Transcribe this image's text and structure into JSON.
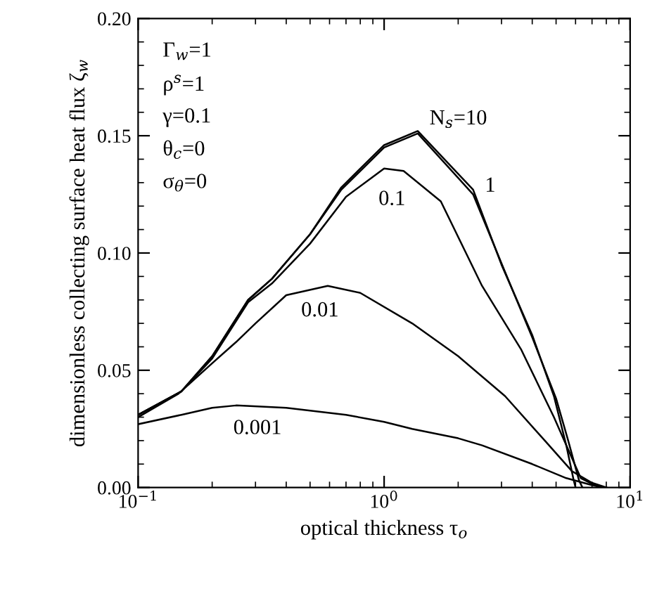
{
  "chart_data": {
    "type": "line",
    "xlabel": "optical thickness τ$_{o}$",
    "ylabel": "dimensionless collecting surface heat flux ζ$_{w}$",
    "log": "x",
    "xlim": [
      0.1,
      10
    ],
    "xticks": [
      {
        "value": 0.1,
        "label": "10$^{−1}$"
      },
      {
        "value": 1,
        "label": "10$^{0}$"
      },
      {
        "value": 10,
        "label": "10$^{1}$"
      }
    ],
    "ylim": [
      0,
      0.2
    ],
    "yticks": [
      {
        "value": 0,
        "label": "0.00"
      },
      {
        "value": 0.05,
        "label": "0.05"
      },
      {
        "value": 0.1,
        "label": "0.10"
      },
      {
        "value": 0.15,
        "label": "0.15"
      },
      {
        "value": 0.2,
        "label": "0.20"
      }
    ],
    "grid": false,
    "legend": false,
    "marker": "none",
    "line_style": "solid",
    "series": [
      {
        "name": "N$_{s}$=10",
        "color": "#000000",
        "x": [
          0.1,
          0.15,
          0.2,
          0.28,
          0.35,
          0.5,
          0.67,
          1.0,
          1.37,
          2.3,
          3.0,
          4.0,
          4.9,
          5.5,
          5.9,
          6.0
        ],
        "values": [
          0.031,
          0.041,
          0.056,
          0.08,
          0.089,
          0.108,
          0.128,
          0.146,
          0.152,
          0.127,
          0.095,
          0.065,
          0.039,
          0.018,
          0.003,
          0.0
        ]
      },
      {
        "name": "1",
        "color": "#000000",
        "x": [
          0.1,
          0.15,
          0.2,
          0.28,
          0.35,
          0.5,
          0.67,
          1.0,
          1.37,
          2.3,
          3.1,
          4.0,
          5.0,
          5.6,
          6.2,
          6.4
        ],
        "values": [
          0.031,
          0.041,
          0.056,
          0.08,
          0.089,
          0.108,
          0.127,
          0.145,
          0.151,
          0.125,
          0.092,
          0.064,
          0.038,
          0.02,
          0.003,
          0.0
        ]
      },
      {
        "name": "0.1",
        "color": "#000000",
        "x": [
          0.1,
          0.15,
          0.2,
          0.28,
          0.35,
          0.5,
          0.7,
          1.0,
          1.2,
          1.7,
          2.5,
          3.6,
          4.9,
          6.3,
          7.5
        ],
        "values": [
          0.031,
          0.041,
          0.055,
          0.079,
          0.087,
          0.104,
          0.124,
          0.136,
          0.135,
          0.122,
          0.086,
          0.059,
          0.03,
          0.004,
          0.0
        ]
      },
      {
        "name": "0.01",
        "color": "#000000",
        "x": [
          0.1,
          0.146,
          0.2,
          0.25,
          0.3,
          0.4,
          0.59,
          0.8,
          1.3,
          2.0,
          3.1,
          4.5,
          5.8,
          7.0,
          8.0
        ],
        "values": [
          0.03,
          0.04,
          0.053,
          0.062,
          0.07,
          0.082,
          0.086,
          0.083,
          0.07,
          0.056,
          0.039,
          0.02,
          0.007,
          0.002,
          0.0
        ]
      },
      {
        "name": "0.001",
        "color": "#000000",
        "x": [
          0.1,
          0.15,
          0.2,
          0.25,
          0.4,
          0.7,
          1.0,
          1.3,
          2.0,
          2.5,
          4.0,
          5.5,
          7.0,
          8.0
        ],
        "values": [
          0.027,
          0.031,
          0.034,
          0.035,
          0.034,
          0.031,
          0.028,
          0.025,
          0.021,
          0.018,
          0.01,
          0.004,
          0.001,
          0.0
        ]
      }
    ],
    "annotations": [
      "Γ$_{w}$=1",
      "ρ$^{s}$=1",
      "γ=0.1",
      "θ$_{c}$=0",
      "σ$_{θ}$=0"
    ]
  }
}
